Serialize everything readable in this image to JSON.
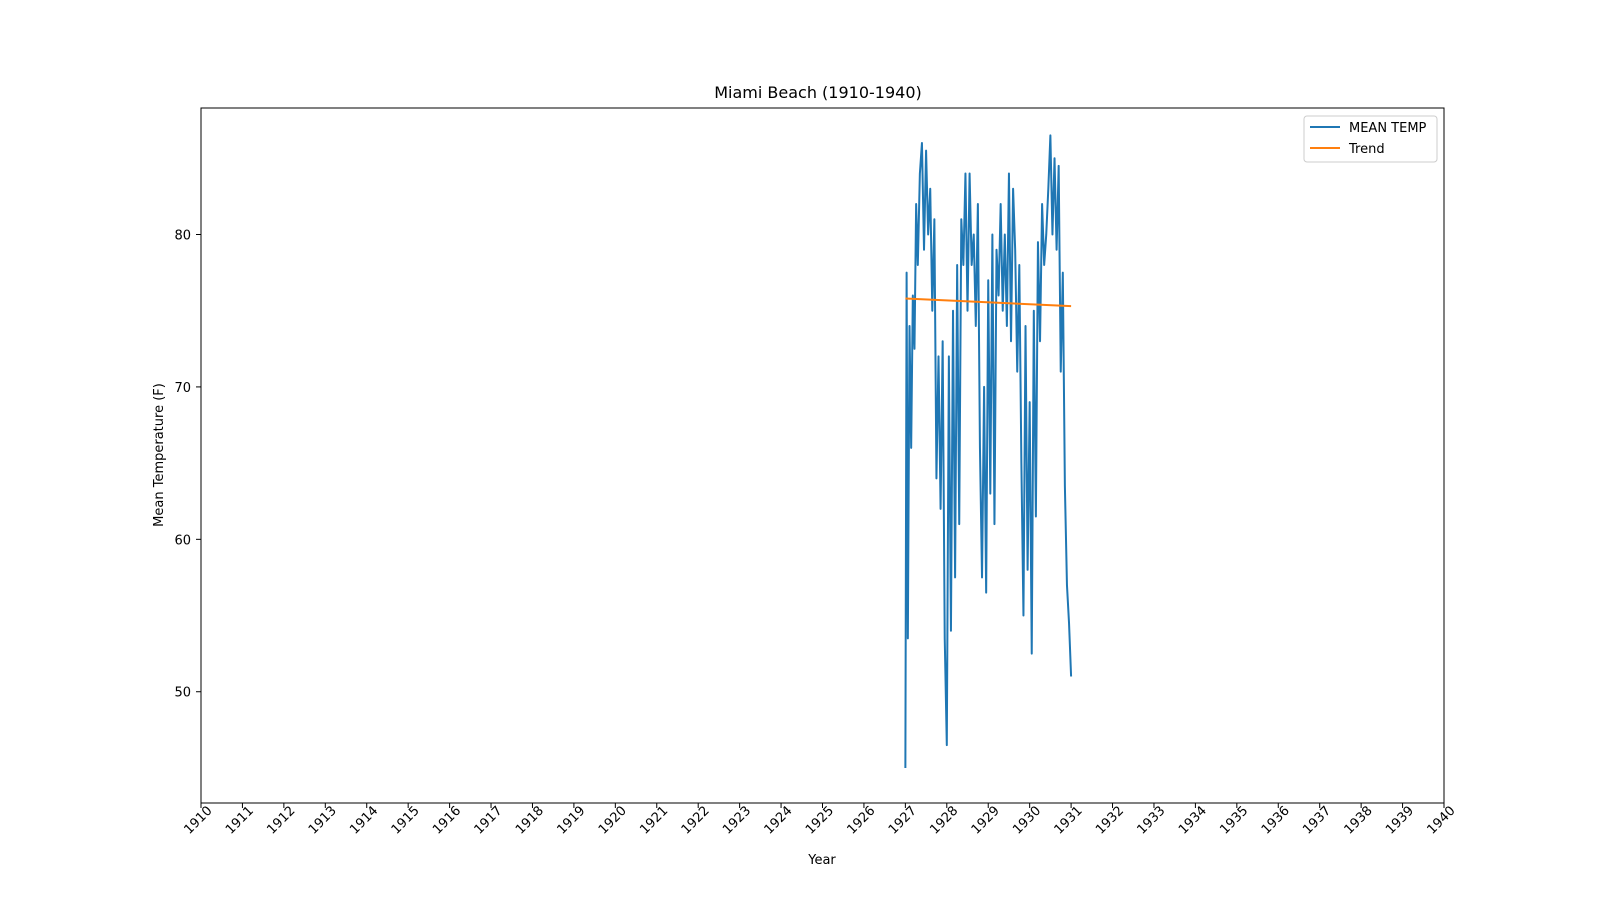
{
  "chart_data": {
    "type": "line",
    "title": "Miami Beach (1910-1940)",
    "xlabel": "Year",
    "ylabel": "Mean Temperature (F)",
    "xlim": [
      1910,
      1940
    ],
    "ylim": [
      42.7,
      88.3
    ],
    "x_ticks": [
      "1910",
      "1911",
      "1912",
      "1913",
      "1914",
      "1915",
      "1916",
      "1917",
      "1918",
      "1919",
      "1920",
      "1921",
      "1922",
      "1923",
      "1924",
      "1925",
      "1926",
      "1927",
      "1928",
      "1929",
      "1930",
      "1931",
      "1932",
      "1933",
      "1934",
      "1935",
      "1936",
      "1937",
      "1938",
      "1939",
      "1940"
    ],
    "y_ticks": [
      50,
      60,
      70,
      80
    ],
    "grid": false,
    "legend_position": "top-right",
    "series": [
      {
        "name": "MEAN TEMP",
        "color": "#1f77b4",
        "x": [
          1927.0,
          1927.03,
          1927.06,
          1927.1,
          1927.14,
          1927.18,
          1927.22,
          1927.26,
          1927.3,
          1927.35,
          1927.4,
          1927.45,
          1927.5,
          1927.55,
          1927.6,
          1927.65,
          1927.7,
          1927.75,
          1927.8,
          1927.85,
          1927.9,
          1927.95,
          1928.0,
          1928.05,
          1928.1,
          1928.15,
          1928.2,
          1928.25,
          1928.3,
          1928.35,
          1928.4,
          1928.45,
          1928.5,
          1928.55,
          1928.6,
          1928.65,
          1928.7,
          1928.75,
          1928.8,
          1928.85,
          1928.9,
          1928.95,
          1929.0,
          1929.05,
          1929.1,
          1929.15,
          1929.2,
          1929.25,
          1929.3,
          1929.35,
          1929.4,
          1929.45,
          1929.5,
          1929.55,
          1929.6,
          1929.65,
          1929.7,
          1929.75,
          1929.8,
          1929.85,
          1929.9,
          1929.95,
          1930.0,
          1930.05,
          1930.1,
          1930.15,
          1930.2,
          1930.25,
          1930.3,
          1930.35,
          1930.4,
          1930.45,
          1930.5,
          1930.55,
          1930.6,
          1930.65,
          1930.7,
          1930.75,
          1930.8,
          1930.85,
          1930.9,
          1930.95,
          1931.0
        ],
        "y": [
          45.0,
          77.5,
          53.5,
          74.0,
          66.0,
          76.0,
          72.5,
          82.0,
          78.0,
          84.0,
          86.0,
          79.0,
          85.5,
          80.0,
          83.0,
          75.0,
          81.0,
          64.0,
          72.0,
          62.0,
          73.0,
          53.5,
          46.5,
          72.0,
          54.0,
          75.0,
          57.5,
          78.0,
          61.0,
          81.0,
          78.0,
          84.0,
          75.0,
          84.0,
          78.0,
          80.0,
          74.0,
          82.0,
          66.0,
          57.5,
          70.0,
          56.5,
          77.0,
          63.0,
          80.0,
          61.0,
          79.0,
          76.0,
          82.0,
          75.0,
          80.0,
          74.0,
          84.0,
          73.0,
          83.0,
          79.0,
          71.0,
          78.0,
          65.0,
          55.0,
          74.0,
          58.0,
          69.0,
          52.5,
          75.0,
          61.5,
          79.5,
          73.0,
          82.0,
          78.0,
          80.0,
          83.0,
          86.5,
          80.0,
          85.0,
          79.0,
          84.5,
          71.0,
          77.5,
          63.5,
          57.0,
          54.5,
          51.0
        ]
      },
      {
        "name": "Trend",
        "color": "#ff7f0e",
        "x": [
          1927.0,
          1931.0
        ],
        "y": [
          75.8,
          75.3
        ]
      }
    ]
  }
}
